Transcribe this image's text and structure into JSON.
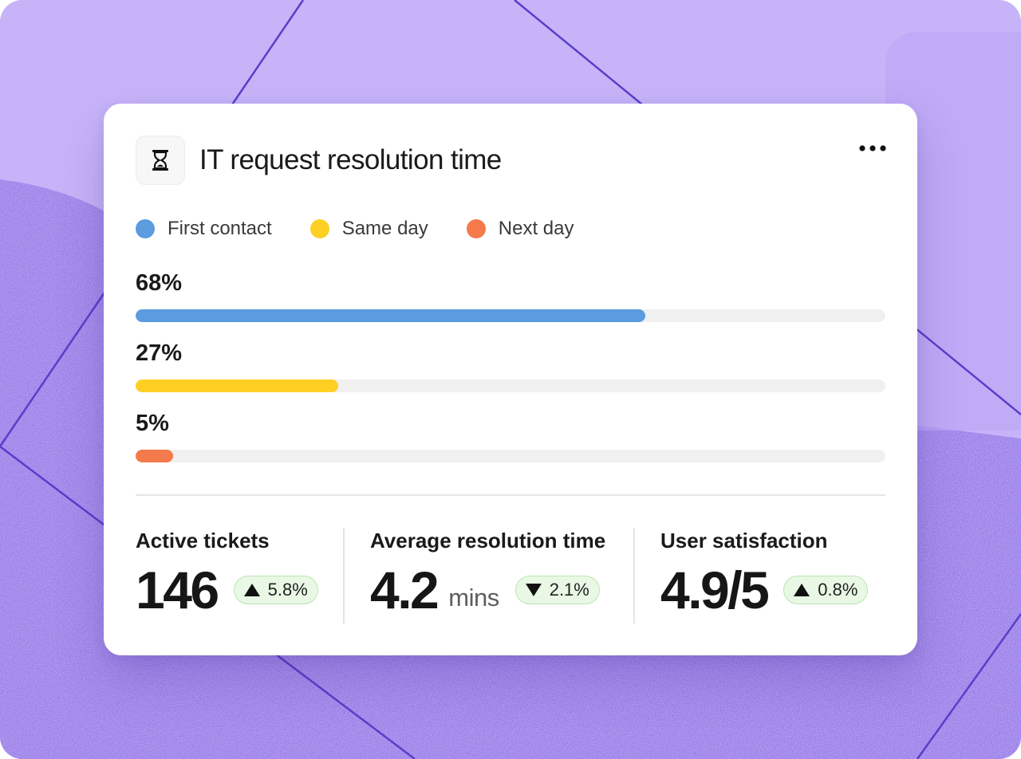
{
  "widget": {
    "title": "IT request resolution time",
    "icon": "hourglass-icon",
    "menu_icon": "more-horizontal-icon"
  },
  "legend": [
    {
      "label": "First contact",
      "color": "#5b9be0"
    },
    {
      "label": "Same day",
      "color": "#fdd023"
    },
    {
      "label": "Next day",
      "color": "#f47a4b"
    }
  ],
  "bars": [
    {
      "label": "68%",
      "percent": 68,
      "color": "#5b9be0"
    },
    {
      "label": "27%",
      "percent": 27,
      "color": "#fdd023"
    },
    {
      "label": "5%",
      "percent": 5,
      "color": "#f47a4b"
    }
  ],
  "stats": [
    {
      "label": "Active tickets",
      "value": "146",
      "unit": "",
      "change": "5.8%",
      "direction": "up"
    },
    {
      "label": "Average resolution time",
      "value": "4.2",
      "unit": "mins",
      "change": "2.1%",
      "direction": "down"
    },
    {
      "label": "User satisfaction",
      "value": "4.9/5",
      "unit": "",
      "change": "0.8%",
      "direction": "up"
    }
  ],
  "colors": {
    "background": "#c4b2f7",
    "accent_line": "#5a3ec8",
    "badge_bg": "#e9f8e5",
    "badge_border": "#b9e6b2"
  }
}
